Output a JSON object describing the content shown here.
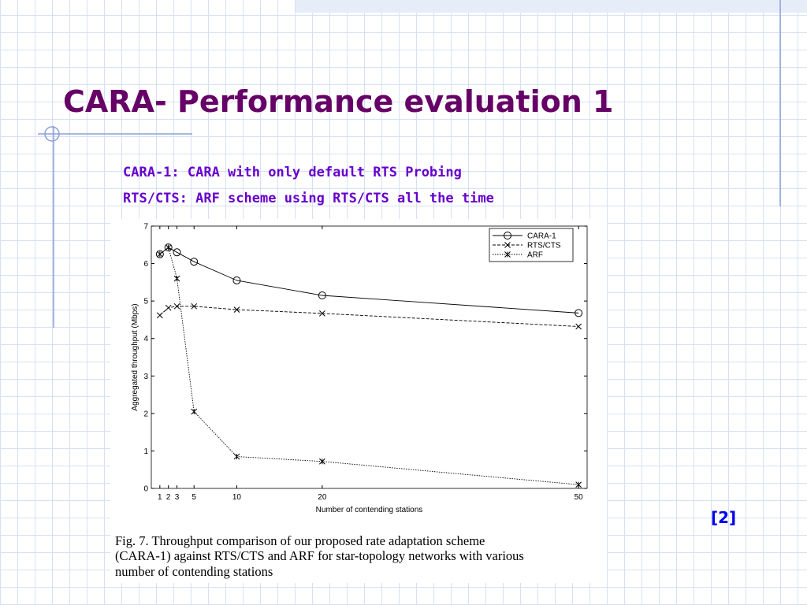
{
  "title": "CARA- Performance evaluation 1",
  "bullets": [
    "CARA-1: CARA with only default RTS Probing",
    "RTS/CTS: ARF scheme using RTS/CTS all the time"
  ],
  "reference": "[2]",
  "caption": [
    "Fig. 7.    Throughput comparison of our proposed rate adaptation scheme",
    "(CARA-1) against RTS/CTS and ARF for star-topology networks with various",
    "number of contending stations"
  ],
  "chart_data": {
    "type": "line",
    "x_label": "Number of contending stations",
    "y_label": "Aggregated throughput (Mbps)",
    "x": [
      1,
      2,
      3,
      5,
      10,
      20,
      50
    ],
    "xlim": [
      0,
      51
    ],
    "xticks": [
      1,
      2,
      3,
      5,
      10,
      20,
      50
    ],
    "ylim": [
      0,
      7
    ],
    "yticks": [
      0,
      1,
      2,
      3,
      4,
      5,
      6,
      7
    ],
    "legend": "upper-right",
    "series": [
      {
        "name": "CARA-1",
        "color": "#000000",
        "dash": "solid",
        "marker": "circle",
        "values": [
          6.25,
          6.43,
          6.3,
          6.05,
          5.55,
          5.15,
          4.68
        ]
      },
      {
        "name": "RTS/CTS",
        "color": "#000000",
        "dash": "dashed",
        "marker": "x",
        "values": [
          4.62,
          4.82,
          4.86,
          4.86,
          4.77,
          4.67,
          4.32
        ]
      },
      {
        "name": "ARF",
        "color": "#000000",
        "dash": "dotted",
        "marker": "star",
        "values": [
          6.25,
          6.43,
          5.6,
          2.05,
          0.85,
          0.72,
          0.1
        ]
      }
    ]
  }
}
